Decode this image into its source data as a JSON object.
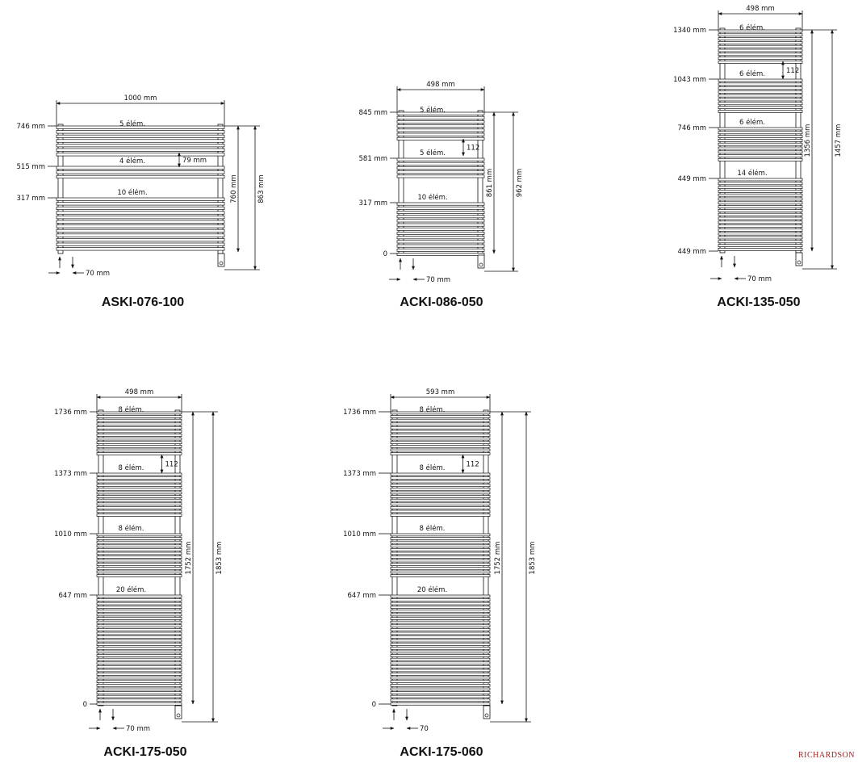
{
  "brand": "RICHARDSON",
  "models": [
    {
      "id": "m1",
      "title": "ASKI-076-100",
      "width_label": "1000 mm",
      "total_height_label": "863 mm",
      "body_height_label": "760 mm",
      "offset_label": "70 mm",
      "pitch_label": "79 mm",
      "groups": [
        {
          "label": "5 élém.",
          "level": "746 mm"
        },
        {
          "label": "4 élém.",
          "level": "515 mm"
        },
        {
          "label": "10 élém.",
          "level": "317 mm"
        }
      ]
    },
    {
      "id": "m2",
      "title": "ACKI-086-050",
      "width_label": "498 mm",
      "total_height_label": "962 mm",
      "body_height_label": "861 mm",
      "offset_label": "70 mm",
      "pitch_label": "112",
      "base_label": "0",
      "groups": [
        {
          "label": "5 élém.",
          "level": "845 mm"
        },
        {
          "label": "5 élém.",
          "level": "581 mm"
        },
        {
          "label": "10 élém.",
          "level": "317 mm"
        }
      ]
    },
    {
      "id": "m3",
      "title": "ACKI-135-050",
      "width_label": "498 mm",
      "total_height_label": "1457 mm",
      "body_height_label": "1356 mm",
      "offset_label": "70 mm",
      "pitch_label": "112",
      "base_label": "449 mm",
      "groups": [
        {
          "label": "6 élém.",
          "level": "1340 mm"
        },
        {
          "label": "6 élém.",
          "level": "1043 mm"
        },
        {
          "label": "6 élém.",
          "level": "746 mm"
        },
        {
          "label": "14 élém.",
          "level": "449 mm"
        }
      ]
    },
    {
      "id": "m4",
      "title": "ACKI-175-050",
      "width_label": "498 mm",
      "total_height_label": "1853 mm",
      "body_height_label": "1752 mm",
      "offset_label": "70 mm",
      "pitch_label": "112",
      "base_label": "0",
      "groups": [
        {
          "label": "8 élém.",
          "level": "1736 mm"
        },
        {
          "label": "8 élém.",
          "level": "1373 mm"
        },
        {
          "label": "8 élém.",
          "level": "1010 mm"
        },
        {
          "label": "20 élém.",
          "level": "647 mm"
        }
      ]
    },
    {
      "id": "m5",
      "title": "ACKI-175-060",
      "width_label": "593 mm",
      "total_height_label": "1853 mm",
      "body_height_label": "1752 mm",
      "offset_label": "70",
      "pitch_label": "112",
      "base_label": "0",
      "groups": [
        {
          "label": "8 élém.",
          "level": "1736 mm"
        },
        {
          "label": "8 élém.",
          "level": "1373 mm"
        },
        {
          "label": "8 élém.",
          "level": "1010 mm"
        },
        {
          "label": "20 élém.",
          "level": "647 mm"
        }
      ]
    }
  ]
}
